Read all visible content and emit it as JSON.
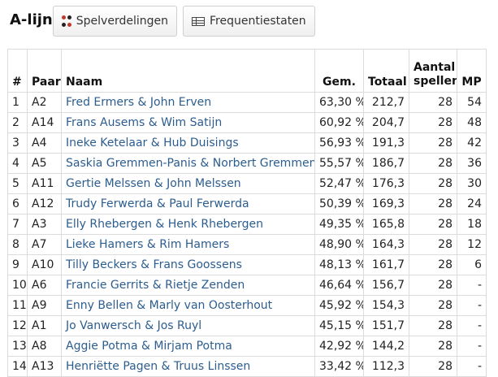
{
  "title": "A-lijn",
  "buttons": {
    "spelverdelingen": "Spelverdelingen",
    "frequentiestaten": "Frequentiestaten"
  },
  "columns": [
    "#",
    "Paar",
    "Naam",
    "Gem.",
    "Totaal",
    "Aantal spellen",
    "MP"
  ],
  "rows": [
    [
      "1",
      "A2",
      "Fred Ermers & John Erven",
      "63,30 %",
      "212,7",
      "28",
      "54"
    ],
    [
      "2",
      "A14",
      "Frans Ausems & Wim Satijn",
      "60,92 %",
      "204,7",
      "28",
      "48"
    ],
    [
      "3",
      "A4",
      "Ineke Ketelaar & Hub Duisings",
      "56,93 %",
      "191,3",
      "28",
      "42"
    ],
    [
      "4",
      "A5",
      "Saskia Gremmen-Panis & Norbert Gremmen",
      "55,57 %",
      "186,7",
      "28",
      "36"
    ],
    [
      "5",
      "A11",
      "Gertie Melssen & John Melssen",
      "52,47 %",
      "176,3",
      "28",
      "30"
    ],
    [
      "6",
      "A12",
      "Trudy Ferwerda & Paul Ferwerda",
      "50,39 %",
      "169,3",
      "28",
      "24"
    ],
    [
      "7",
      "A3",
      "Elly Rhebergen & Henk Rhebergen",
      "49,35 %",
      "165,8",
      "28",
      "18"
    ],
    [
      "8",
      "A7",
      "Lieke Hamers & Rim Hamers",
      "48,90 %",
      "164,3",
      "28",
      "12"
    ],
    [
      "9",
      "A10",
      "Tilly Beckers & Frans Goossens",
      "48,13 %",
      "161,7",
      "28",
      "6"
    ],
    [
      "10",
      "A6",
      "Francie Gerrits & Rietje Zenden",
      "46,64 %",
      "156,7",
      "28",
      "-"
    ],
    [
      "11",
      "A9",
      "Enny Bellen & Marly van Oosterhout",
      "45,92 %",
      "154,3",
      "28",
      "-"
    ],
    [
      "12",
      "A1",
      "Jo Vanwersch & Jos Ruyl",
      "45,15 %",
      "151,7",
      "28",
      "-"
    ],
    [
      "13",
      "A8",
      "Aggie Potma & Mirjam Potma",
      "42,92 %",
      "144,2",
      "28",
      "-"
    ],
    [
      "14",
      "A13",
      "Henriëtte Pagen & Truus Linssen",
      "33,42 %",
      "112,3",
      "28",
      "-"
    ]
  ],
  "icons": {
    "spelverdelingen": "card-suits-icon",
    "frequentiestaten": "table-icon"
  }
}
